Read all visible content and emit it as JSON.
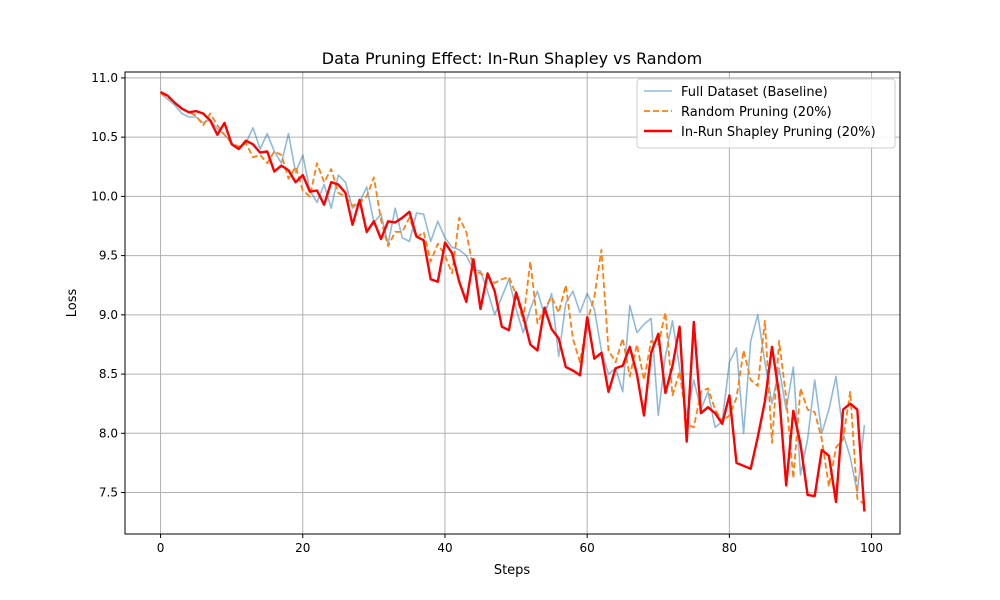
{
  "chart_data": {
    "type": "line",
    "title": "Data Pruning Effect: In-Run Shapley vs Random",
    "xlabel": "Steps",
    "ylabel": "Loss",
    "xlim": [
      -5,
      104
    ],
    "ylim": [
      7.15,
      11.05
    ],
    "xticks": [
      0,
      20,
      40,
      60,
      80,
      100
    ],
    "yticks": [
      7.5,
      8.0,
      8.5,
      9.0,
      9.5,
      10.0,
      10.5,
      11.0
    ],
    "grid": true,
    "legend_position": "top-right",
    "series": [
      {
        "name": "Full Dataset (Baseline)",
        "color": "#1f77b4",
        "style": "solid",
        "x": [
          0,
          1,
          2,
          3,
          4,
          5,
          6,
          7,
          8,
          9,
          10,
          11,
          12,
          13,
          14,
          15,
          16,
          17,
          18,
          19,
          20,
          21,
          22,
          23,
          24,
          25,
          26,
          27,
          28,
          29,
          30,
          31,
          32,
          33,
          34,
          35,
          36,
          37,
          38,
          39,
          40,
          41,
          42,
          43,
          44,
          45,
          46,
          47,
          48,
          49,
          50,
          51,
          52,
          53,
          54,
          55,
          56,
          57,
          58,
          59,
          60,
          61,
          62,
          63,
          64,
          65,
          66,
          67,
          68,
          69,
          70,
          71,
          72,
          73,
          74,
          75,
          76,
          77,
          78,
          79,
          80,
          81,
          82,
          83,
          84,
          85,
          86,
          87,
          88,
          89,
          90,
          91,
          92,
          93,
          94,
          95,
          96,
          97,
          98,
          99
        ],
        "y": [
          10.87,
          10.82,
          10.77,
          10.7,
          10.67,
          10.67,
          10.62,
          10.65,
          10.57,
          10.52,
          10.45,
          10.4,
          10.45,
          10.58,
          10.4,
          10.53,
          10.38,
          10.28,
          10.53,
          10.2,
          10.35,
          10.05,
          9.95,
          10.1,
          9.9,
          10.18,
          10.12,
          9.9,
          9.95,
          10.08,
          9.78,
          9.85,
          9.6,
          9.9,
          9.65,
          9.62,
          9.86,
          9.85,
          9.62,
          9.79,
          9.65,
          9.57,
          9.55,
          9.5,
          9.38,
          9.37,
          9.2,
          9.0,
          9.15,
          9.3,
          9.05,
          8.85,
          9.05,
          9.2,
          9.0,
          9.18,
          8.65,
          9.1,
          9.2,
          9.02,
          9.18,
          9.05,
          8.7,
          8.5,
          8.55,
          8.35,
          9.08,
          8.85,
          8.92,
          8.97,
          8.15,
          8.65,
          8.95,
          8.55,
          8.15,
          8.45,
          8.2,
          8.35,
          8.05,
          8.1,
          8.6,
          8.72,
          8.0,
          8.78,
          9.0,
          8.6,
          8.25,
          8.55,
          8.2,
          8.56,
          7.65,
          7.95,
          8.45,
          8.0,
          8.2,
          8.48,
          8.0,
          7.8,
          7.5,
          8.07
        ]
      },
      {
        "name": "Random Pruning (20%)",
        "color": "#ff7f0e",
        "style": "dashed",
        "x": [
          0,
          1,
          2,
          3,
          4,
          5,
          6,
          7,
          8,
          9,
          10,
          11,
          12,
          13,
          14,
          15,
          16,
          17,
          18,
          19,
          20,
          21,
          22,
          23,
          24,
          25,
          26,
          27,
          28,
          29,
          30,
          31,
          32,
          33,
          34,
          35,
          36,
          37,
          38,
          39,
          40,
          41,
          42,
          43,
          44,
          45,
          46,
          47,
          48,
          49,
          50,
          51,
          52,
          53,
          54,
          55,
          56,
          57,
          58,
          59,
          60,
          61,
          62,
          63,
          64,
          65,
          66,
          67,
          68,
          69,
          70,
          71,
          72,
          73,
          74,
          75,
          76,
          77,
          78,
          79,
          80,
          81,
          82,
          83,
          84,
          85,
          86,
          87,
          88,
          89,
          90,
          91,
          92,
          93,
          94,
          95,
          96,
          97,
          98,
          99
        ],
        "y": [
          10.87,
          10.84,
          10.79,
          10.74,
          10.71,
          10.68,
          10.6,
          10.7,
          10.6,
          10.52,
          10.45,
          10.42,
          10.45,
          10.33,
          10.35,
          10.28,
          10.38,
          10.35,
          10.15,
          10.25,
          10.05,
          10.0,
          10.28,
          10.12,
          10.23,
          10.03,
          10.0,
          9.92,
          9.95,
          10.0,
          10.16,
          9.8,
          9.58,
          9.7,
          9.7,
          9.82,
          9.65,
          9.7,
          9.45,
          9.6,
          9.5,
          9.35,
          9.82,
          9.7,
          9.38,
          9.35,
          9.32,
          9.27,
          9.3,
          9.32,
          9.17,
          8.95,
          9.45,
          8.93,
          9.05,
          9.15,
          9.02,
          9.25,
          8.8,
          8.6,
          8.95,
          9.15,
          9.55,
          8.7,
          8.6,
          8.8,
          8.48,
          8.75,
          8.45,
          8.78,
          8.75,
          9.02,
          8.32,
          8.52,
          8.08,
          8.05,
          8.35,
          8.38,
          8.2,
          8.1,
          8.15,
          8.3,
          8.7,
          8.45,
          8.4,
          8.95,
          7.92,
          8.78,
          8.3,
          7.62,
          8.38,
          8.2,
          8.18,
          7.95,
          7.55,
          7.88,
          7.95,
          8.35,
          7.45,
          7.4
        ]
      },
      {
        "name": "In-Run Shapley Pruning (20%)",
        "color": "#ff0000",
        "style": "solid",
        "x": [
          0,
          1,
          2,
          3,
          4,
          5,
          6,
          7,
          8,
          9,
          10,
          11,
          12,
          13,
          14,
          15,
          16,
          17,
          18,
          19,
          20,
          21,
          22,
          23,
          24,
          25,
          26,
          27,
          28,
          29,
          30,
          31,
          32,
          33,
          34,
          35,
          36,
          37,
          38,
          39,
          40,
          41,
          42,
          43,
          44,
          45,
          46,
          47,
          48,
          49,
          50,
          51,
          52,
          53,
          54,
          55,
          56,
          57,
          58,
          59,
          60,
          61,
          62,
          63,
          64,
          65,
          66,
          67,
          68,
          69,
          70,
          71,
          72,
          73,
          74,
          75,
          76,
          77,
          78,
          79,
          80,
          81,
          83,
          84,
          85,
          86,
          87,
          88,
          89,
          90,
          91,
          92,
          93,
          94,
          95,
          96,
          97,
          98,
          99
        ],
        "y": [
          10.88,
          10.85,
          10.79,
          10.74,
          10.71,
          10.72,
          10.7,
          10.64,
          10.52,
          10.62,
          10.44,
          10.4,
          10.47,
          10.44,
          10.37,
          10.38,
          10.21,
          10.26,
          10.22,
          10.12,
          10.18,
          10.04,
          10.05,
          9.93,
          10.12,
          10.1,
          10.03,
          9.76,
          9.97,
          9.7,
          9.79,
          9.64,
          9.79,
          9.78,
          9.82,
          9.87,
          9.66,
          9.63,
          9.3,
          9.28,
          9.61,
          9.52,
          9.28,
          9.11,
          9.47,
          9.05,
          9.35,
          9.2,
          8.9,
          8.87,
          9.19,
          8.99,
          8.75,
          8.7,
          9.06,
          8.88,
          8.8,
          8.56,
          8.53,
          8.49,
          8.98,
          8.63,
          8.68,
          8.35,
          8.55,
          8.57,
          8.73,
          8.5,
          8.15,
          8.68,
          8.84,
          8.34,
          8.57,
          8.9,
          7.93,
          8.94,
          8.17,
          8.22,
          8.17,
          8.08,
          8.32,
          7.75,
          7.7,
          7.97,
          8.27,
          8.73,
          8.33,
          7.56,
          8.19,
          7.91,
          7.48,
          7.47,
          7.86,
          7.81,
          7.42,
          8.2,
          8.25,
          8.2,
          7.34
        ]
      }
    ]
  }
}
